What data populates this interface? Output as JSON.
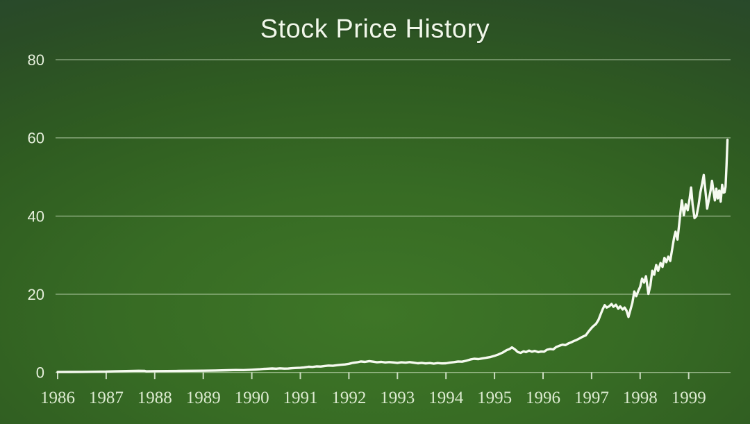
{
  "title": "Stock Price History",
  "colors": {
    "background_center": "#3e7627",
    "background_edge": "#264433",
    "line": "#f6faf0",
    "gridline": "#d6e8cb",
    "tick": "#e4eeda",
    "title_text": "#f0f7e9",
    "y_label_text": "#e7f0dd",
    "x_label_text": "#dcead0"
  },
  "chart_data": {
    "type": "line",
    "title": "Stock Price History",
    "xlabel": "",
    "ylabel": "",
    "legend": "none",
    "grid": "horizontal",
    "xlim": [
      1986,
      2000
    ],
    "ylim": [
      0,
      80
    ],
    "y_ticks": [
      0,
      20,
      40,
      60,
      80
    ],
    "x_ticks": [
      1986,
      1987,
      1988,
      1989,
      1990,
      1991,
      1992,
      1993,
      1994,
      1995,
      1996,
      1997,
      1998,
      1999
    ],
    "series": [
      {
        "name": "Stock Price",
        "x": [
          1986.0,
          1986.25,
          1986.5,
          1986.75,
          1987.0,
          1987.17,
          1987.33,
          1987.5,
          1987.67,
          1987.79,
          1987.83,
          1988.0,
          1988.25,
          1988.5,
          1988.75,
          1989.0,
          1989.25,
          1989.5,
          1989.67,
          1989.83,
          1990.0,
          1990.08,
          1990.17,
          1990.25,
          1990.33,
          1990.42,
          1990.5,
          1990.58,
          1990.67,
          1990.75,
          1990.83,
          1990.92,
          1991.0,
          1991.08,
          1991.17,
          1991.25,
          1991.33,
          1991.42,
          1991.5,
          1991.58,
          1991.67,
          1991.75,
          1991.83,
          1991.92,
          1992.0,
          1992.08,
          1992.17,
          1992.25,
          1992.33,
          1992.42,
          1992.5,
          1992.58,
          1992.67,
          1992.75,
          1992.83,
          1992.92,
          1993.0,
          1993.08,
          1993.17,
          1993.25,
          1993.33,
          1993.42,
          1993.5,
          1993.58,
          1993.67,
          1993.75,
          1993.83,
          1993.92,
          1994.0,
          1994.08,
          1994.17,
          1994.25,
          1994.33,
          1994.42,
          1994.5,
          1994.58,
          1994.67,
          1994.75,
          1994.83,
          1994.92,
          1995.0,
          1995.08,
          1995.17,
          1995.25,
          1995.31,
          1995.36,
          1995.42,
          1995.48,
          1995.54,
          1995.6,
          1995.65,
          1995.71,
          1995.77,
          1995.83,
          1995.9,
          1995.96,
          1996.02,
          1996.08,
          1996.15,
          1996.21,
          1996.27,
          1996.33,
          1996.4,
          1996.46,
          1996.52,
          1996.58,
          1996.63,
          1996.69,
          1996.75,
          1996.81,
          1996.88,
          1996.94,
          1997.0,
          1997.04,
          1997.09,
          1997.14,
          1997.19,
          1997.23,
          1997.27,
          1997.31,
          1997.36,
          1997.41,
          1997.45,
          1997.5,
          1997.55,
          1997.59,
          1997.64,
          1997.68,
          1997.72,
          1997.76,
          1997.8,
          1997.84,
          1997.88,
          1997.92,
          1997.96,
          1998.0,
          1998.04,
          1998.08,
          1998.12,
          1998.17,
          1998.21,
          1998.25,
          1998.29,
          1998.33,
          1998.37,
          1998.42,
          1998.46,
          1998.5,
          1998.54,
          1998.58,
          1998.62,
          1998.66,
          1998.7,
          1998.73,
          1998.77,
          1998.81,
          1998.84,
          1998.86,
          1998.9,
          1998.94,
          1998.98,
          1999.02,
          1999.05,
          1999.08,
          1999.12,
          1999.16,
          1999.2,
          1999.24,
          1999.28,
          1999.31,
          1999.34,
          1999.38,
          1999.42,
          1999.45,
          1999.48,
          1999.51,
          1999.54,
          1999.57,
          1999.6,
          1999.63,
          1999.66,
          1999.69,
          1999.72,
          1999.74,
          1999.76,
          1999.78,
          1999.8
        ],
        "values": [
          0.1,
          0.12,
          0.14,
          0.17,
          0.22,
          0.28,
          0.33,
          0.37,
          0.42,
          0.4,
          0.29,
          0.33,
          0.36,
          0.39,
          0.42,
          0.45,
          0.5,
          0.56,
          0.62,
          0.6,
          0.7,
          0.75,
          0.82,
          0.9,
          0.95,
          1.02,
          0.96,
          1.05,
          0.98,
          1.0,
          1.08,
          1.15,
          1.2,
          1.3,
          1.45,
          1.4,
          1.55,
          1.5,
          1.65,
          1.75,
          1.7,
          1.85,
          1.95,
          2.05,
          2.2,
          2.45,
          2.6,
          2.8,
          2.7,
          2.9,
          2.75,
          2.6,
          2.7,
          2.55,
          2.65,
          2.55,
          2.45,
          2.6,
          2.5,
          2.65,
          2.5,
          2.35,
          2.45,
          2.3,
          2.4,
          2.25,
          2.4,
          2.3,
          2.35,
          2.5,
          2.65,
          2.8,
          2.75,
          3.0,
          3.3,
          3.5,
          3.4,
          3.6,
          3.75,
          3.95,
          4.25,
          4.6,
          5.1,
          5.7,
          6.0,
          6.4,
          5.9,
          5.2,
          5.0,
          5.4,
          5.2,
          5.6,
          5.3,
          5.5,
          5.2,
          5.35,
          5.3,
          5.8,
          6.0,
          5.9,
          6.5,
          6.8,
          7.1,
          7.0,
          7.4,
          7.7,
          8.0,
          8.3,
          8.7,
          9.1,
          9.5,
          10.5,
          11.4,
          11.9,
          12.4,
          13.4,
          15.0,
          16.2,
          17.2,
          16.6,
          16.9,
          17.5,
          16.8,
          17.3,
          16.3,
          16.9,
          16.1,
          16.6,
          15.8,
          14.2,
          16.0,
          17.8,
          20.7,
          19.5,
          20.8,
          21.9,
          24.0,
          23.0,
          24.6,
          20.1,
          22.2,
          26.0,
          25.0,
          27.5,
          26.0,
          28.0,
          27.0,
          29.3,
          28.2,
          29.6,
          28.5,
          31.5,
          34.5,
          36.0,
          34.0,
          38.5,
          42.0,
          44.0,
          40.2,
          43.0,
          41.5,
          44.5,
          47.3,
          43.0,
          39.5,
          40.0,
          42.5,
          46.0,
          48.5,
          50.5,
          47.0,
          41.9,
          44.5,
          46.5,
          49.0,
          46.5,
          44.0,
          47.0,
          44.5,
          46.5,
          43.7,
          48.0,
          46.0,
          46.1,
          47.5,
          53.0,
          59.5
        ]
      }
    ]
  }
}
